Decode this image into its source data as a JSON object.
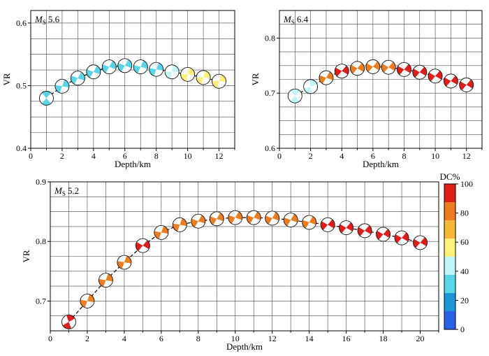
{
  "chart_data": [
    {
      "type": "scatter",
      "title": "MS 5.6",
      "title_main": "M",
      "title_sub": "S",
      "title_value": "5.6",
      "xlabel": "Depth/km",
      "ylabel": "VR",
      "xlim": [
        0,
        13
      ],
      "ylim": [
        0.4,
        0.62
      ],
      "xticks": [
        0,
        2,
        4,
        6,
        8,
        10,
        12
      ],
      "yticks": [
        0.4,
        0.5,
        0.6
      ],
      "yticks_text": [
        "0.4",
        "0.5",
        "0.6"
      ],
      "grid": true,
      "x": [
        1,
        2,
        3,
        4,
        5,
        6,
        7,
        8,
        9,
        10,
        11,
        12
      ],
      "y": [
        0.48,
        0.499,
        0.512,
        0.522,
        0.53,
        0.532,
        0.53,
        0.526,
        0.522,
        0.518,
        0.513,
        0.507
      ],
      "dc": [
        35,
        35,
        35,
        35,
        25,
        25,
        35,
        35,
        40,
        55,
        55,
        55
      ]
    },
    {
      "type": "scatter",
      "title": "MS 6.4",
      "title_main": "M",
      "title_sub": "S",
      "title_value": "6.4",
      "xlabel": "Depth/km",
      "ylabel": "VR",
      "xlim": [
        0,
        13
      ],
      "ylim": [
        0.6,
        0.85
      ],
      "xticks": [
        0,
        2,
        4,
        6,
        8,
        10,
        12
      ],
      "yticks": [
        0.6,
        0.7,
        0.8
      ],
      "yticks_text": [
        "0.6",
        "0.7",
        "0.8"
      ],
      "grid": true,
      "x": [
        1,
        2,
        3,
        4,
        5,
        6,
        7,
        8,
        9,
        10,
        11,
        12
      ],
      "y": [
        0.695,
        0.712,
        0.728,
        0.74,
        0.745,
        0.748,
        0.747,
        0.743,
        0.738,
        0.731,
        0.722,
        0.715
      ],
      "dc": [
        38,
        40,
        75,
        88,
        75,
        75,
        75,
        88,
        88,
        90,
        90,
        90
      ]
    },
    {
      "type": "scatter",
      "title": "MS 5.2",
      "title_main": "M",
      "title_sub": "S",
      "title_value": "5.2",
      "xlabel": "Depth/km",
      "ylabel": "VR",
      "xlim": [
        0,
        21
      ],
      "ylim": [
        0.65,
        0.9
      ],
      "xticks": [
        0,
        2,
        4,
        6,
        8,
        10,
        12,
        14,
        16,
        18,
        20
      ],
      "yticks": [
        0.7,
        0.8,
        0.9
      ],
      "yticks_text": [
        "0.7",
        "0.8",
        "0.9"
      ],
      "grid": true,
      "x": [
        1,
        2,
        3,
        4,
        5,
        6,
        7,
        8,
        9,
        10,
        11,
        12,
        13,
        14,
        15,
        16,
        17,
        18,
        19,
        20
      ],
      "y": [
        0.665,
        0.7,
        0.735,
        0.765,
        0.793,
        0.815,
        0.828,
        0.834,
        0.838,
        0.84,
        0.84,
        0.839,
        0.836,
        0.832,
        0.828,
        0.823,
        0.818,
        0.812,
        0.806,
        0.798
      ],
      "dc": [
        95,
        75,
        75,
        75,
        95,
        75,
        75,
        75,
        75,
        75,
        75,
        75,
        75,
        75,
        95,
        95,
        95,
        95,
        95,
        95
      ]
    }
  ],
  "colorbar": {
    "label": "DC%",
    "ticks": [
      "0",
      "20",
      "40",
      "60",
      "80",
      "100"
    ],
    "colors": [
      "#2a5fe8",
      "#1d96d8",
      "#58d6e6",
      "#bff5f5",
      "#fff27a",
      "#f7b835",
      "#ef7c1f",
      "#e21b1b"
    ]
  }
}
